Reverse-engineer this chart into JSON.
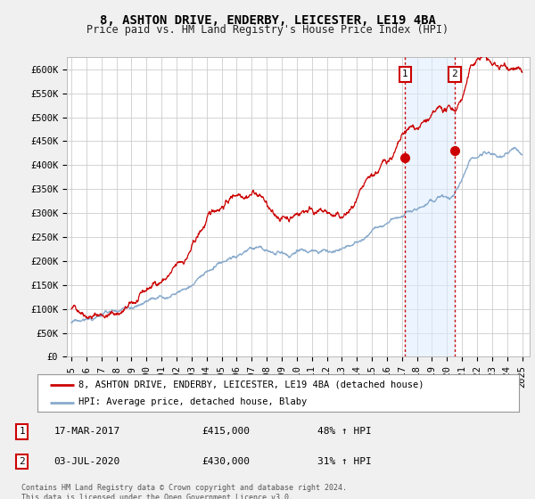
{
  "title": "8, ASHTON DRIVE, ENDERBY, LEICESTER, LE19 4BA",
  "subtitle": "Price paid vs. HM Land Registry's House Price Index (HPI)",
  "ylabel_ticks": [
    "£0",
    "£50K",
    "£100K",
    "£150K",
    "£200K",
    "£250K",
    "£300K",
    "£350K",
    "£400K",
    "£450K",
    "£500K",
    "£550K",
    "£600K"
  ],
  "ytick_values": [
    0,
    50000,
    100000,
    150000,
    200000,
    250000,
    300000,
    350000,
    400000,
    450000,
    500000,
    550000,
    600000
  ],
  "ylim": [
    0,
    625000
  ],
  "xlim_start": 1994.7,
  "xlim_end": 2025.5,
  "xtick_years": [
    1995,
    1996,
    1997,
    1998,
    1999,
    2000,
    2001,
    2002,
    2003,
    2004,
    2005,
    2006,
    2007,
    2008,
    2009,
    2010,
    2011,
    2012,
    2013,
    2014,
    2015,
    2016,
    2017,
    2018,
    2019,
    2020,
    2021,
    2022,
    2023,
    2024,
    2025
  ],
  "bg_color": "#f0f0f0",
  "plot_bg_color": "#ffffff",
  "grid_color": "#cccccc",
  "red_line_color": "#cc0000",
  "blue_line_color": "#88aacc",
  "event1_x": 2017.21,
  "event1_y": 415000,
  "event2_x": 2020.51,
  "event2_y": 430000,
  "span_color": "#ddeeff",
  "span_alpha": 0.55,
  "legend_red_label": "8, ASHTON DRIVE, ENDERBY, LEICESTER, LE19 4BA (detached house)",
  "legend_blue_label": "HPI: Average price, detached house, Blaby",
  "table_row1": [
    "1",
    "17-MAR-2017",
    "£415,000",
    "48% ↑ HPI"
  ],
  "table_row2": [
    "2",
    "03-JUL-2020",
    "£430,000",
    "31% ↑ HPI"
  ],
  "footnote": "Contains HM Land Registry data © Crown copyright and database right 2024.\nThis data is licensed under the Open Government Licence v3.0.",
  "title_fontsize": 10,
  "subtitle_fontsize": 8.5,
  "tick_fontsize": 7.5,
  "legend_fontsize": 7.5,
  "table_fontsize": 8
}
